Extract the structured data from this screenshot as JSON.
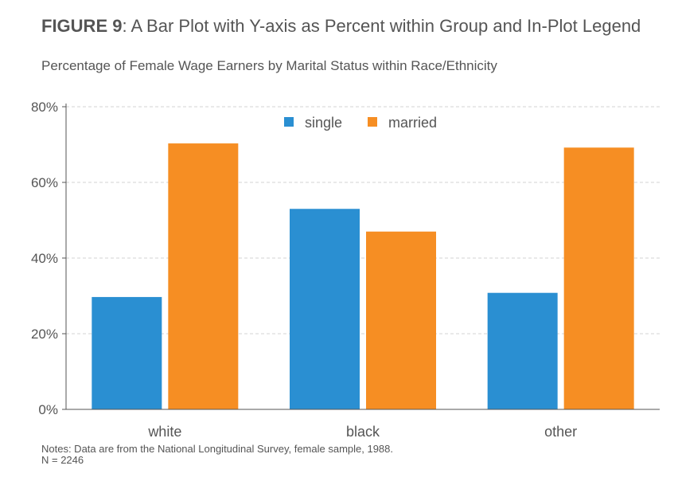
{
  "figure": {
    "label": "FIGURE 9",
    "title_rest": ": A Bar Plot with Y-axis as Percent within Group and In-Plot Legend"
  },
  "chart_data": {
    "type": "bar",
    "title": "Percentage of Female Wage Earners by Marital Status within Race/Ethnicity",
    "xlabel": "",
    "ylabel": "",
    "categories": [
      "white",
      "black",
      "other"
    ],
    "series": [
      {
        "name": "single",
        "values": [
          29.7,
          53.0,
          30.8
        ],
        "color": "#2a8fd2"
      },
      {
        "name": "married",
        "values": [
          70.3,
          47.0,
          69.2
        ],
        "color": "#f68e23"
      }
    ],
    "ylim": [
      0,
      80
    ],
    "yticks": [
      0,
      20,
      40,
      60,
      80
    ],
    "ytick_labels": [
      "0%",
      "20%",
      "40%",
      "60%",
      "80%"
    ],
    "grid": true,
    "legend_position": "top-center"
  },
  "notes": {
    "line1": "Notes: Data are from the National Longitudinal Survey, female sample, 1988.",
    "line2": "N = 2246"
  }
}
